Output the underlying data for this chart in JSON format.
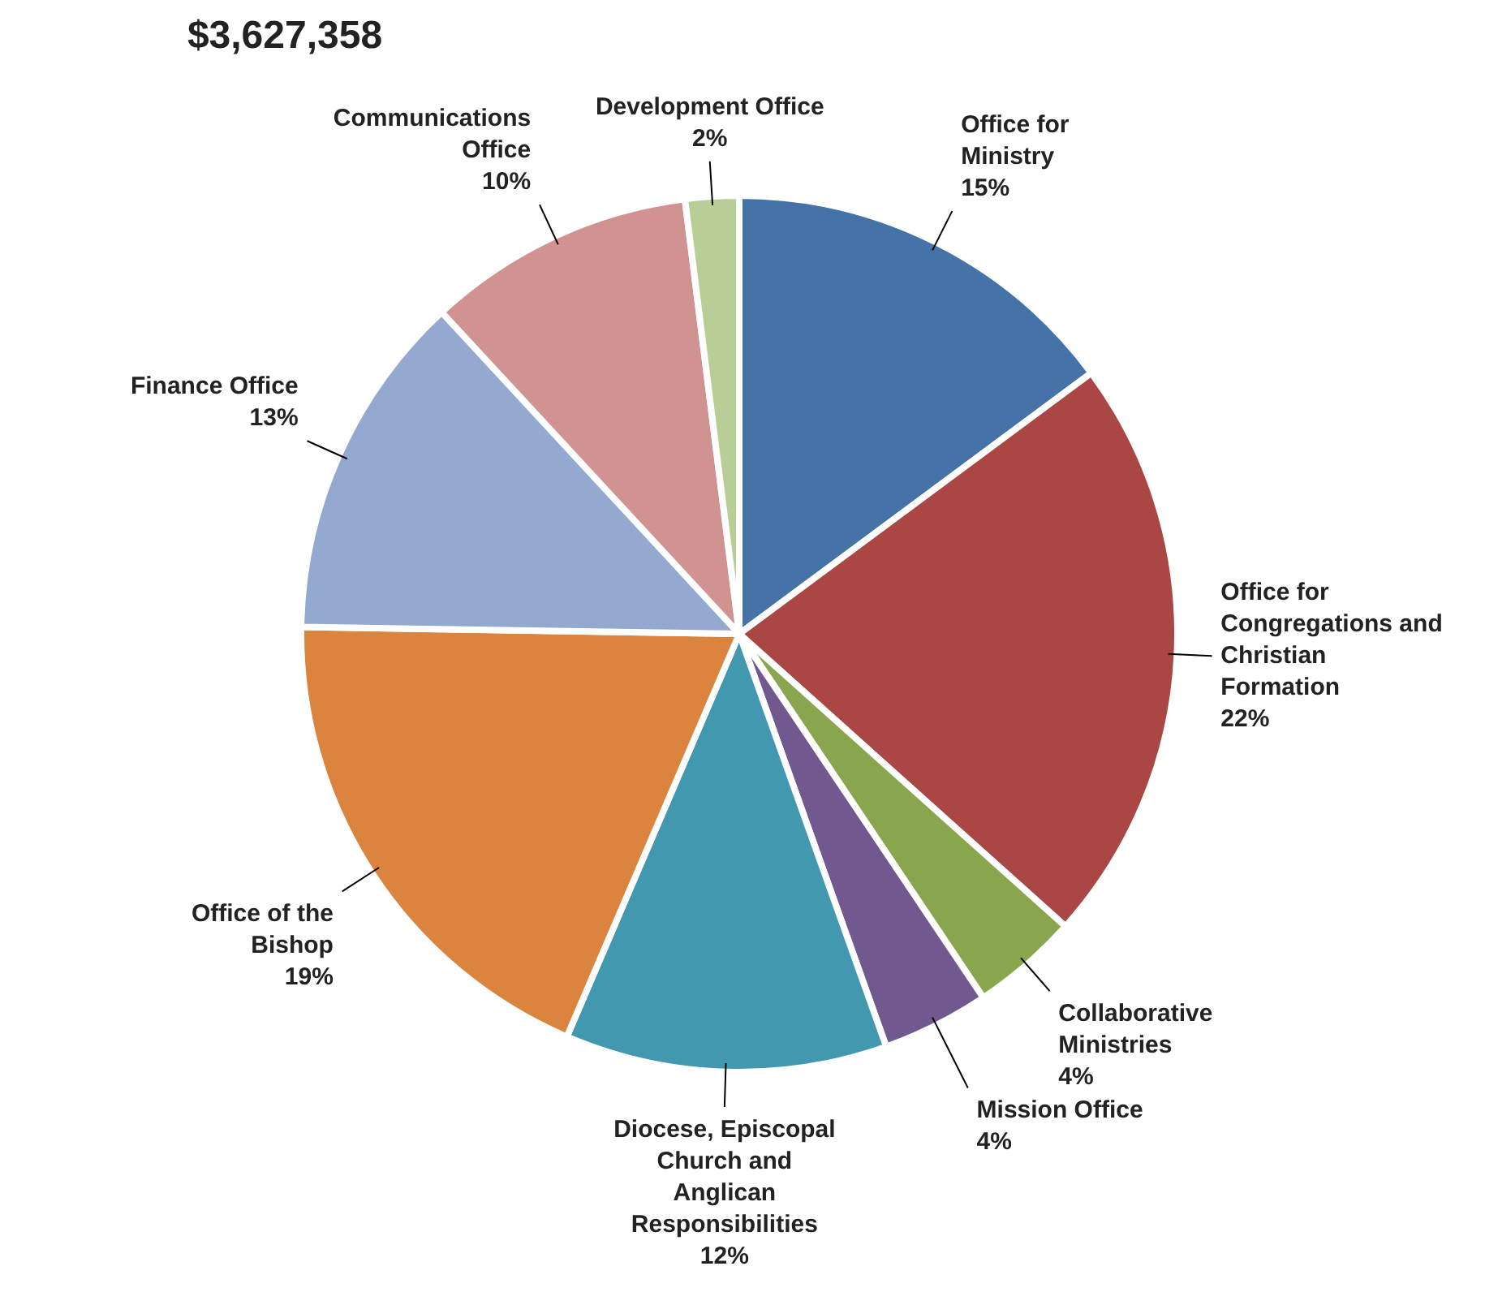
{
  "chart_data": {
    "type": "pie",
    "title": "$3,627,358",
    "categories": [
      "Office for Ministry",
      "Office for Congregations and Christian Formation",
      "Collaborative Ministries",
      "Mission Office",
      "Diocese, Episcopal Church and Anglican Responsibilities",
      "Office of the Bishop",
      "Finance Office",
      "Communications Office",
      "Development Office"
    ],
    "values": [
      15,
      22,
      4,
      4,
      12,
      19,
      13,
      10,
      2
    ],
    "value_labels": [
      "15%",
      "22%",
      "4%",
      "4%",
      "12%",
      "19%",
      "13%",
      "10%",
      "2%"
    ],
    "colors": [
      "#4572a7",
      "#aa4643",
      "#89a54e",
      "#71588f",
      "#4198af",
      "#db843d",
      "#93a9cf",
      "#d19392",
      "#b9cd96"
    ]
  }
}
